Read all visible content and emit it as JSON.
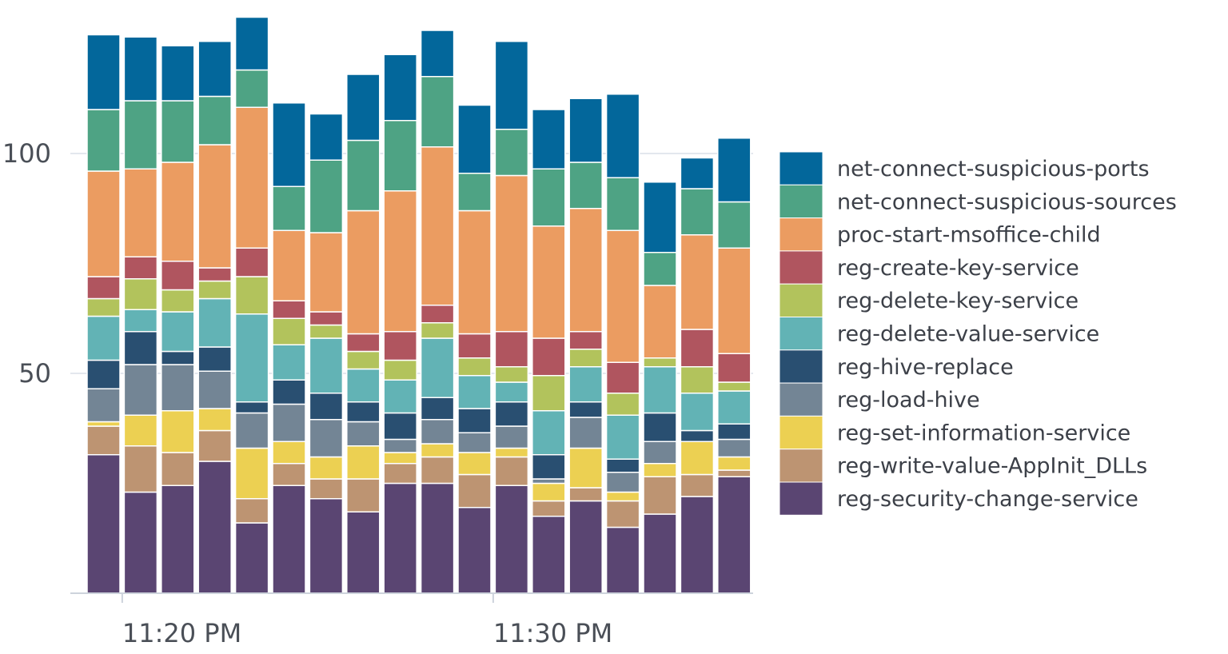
{
  "chart_data": {
    "type": "bar",
    "stacked": true,
    "title": "",
    "xlabel": "",
    "ylabel": "",
    "ylim": [
      0,
      132
    ],
    "yticks": [
      50,
      100
    ],
    "x_tick_labels": [
      {
        "label": "11:20 PM",
        "category_index": 1
      },
      {
        "label": "11:30 PM",
        "category_index": 11
      }
    ],
    "grid": "horizontal",
    "legend_position": "right",
    "categories": [
      "1",
      "2",
      "3",
      "4",
      "5",
      "6",
      "7",
      "8",
      "9",
      "10",
      "11",
      "12",
      "13",
      "14",
      "15",
      "16",
      "17",
      "18"
    ],
    "series": [
      {
        "name": "reg-security-change-service",
        "color": "#5a4572",
        "values": [
          31.5,
          23,
          24.5,
          30,
          16,
          24.5,
          21.5,
          18.5,
          25,
          25,
          19.5,
          24.5,
          17.5,
          21,
          15,
          18,
          22,
          26.5
        ]
      },
      {
        "name": "reg-write-value-AppInit_DLLs",
        "color": "#bd9472",
        "values": [
          6.5,
          10.5,
          7.5,
          7,
          5.5,
          5,
          4.5,
          7.5,
          4.5,
          6,
          7.5,
          6.5,
          3.5,
          3,
          6,
          8.5,
          5,
          1.5
        ]
      },
      {
        "name": "reg-set-information-service",
        "color": "#ecd052",
        "values": [
          1,
          7,
          9.5,
          5,
          11.5,
          5,
          5,
          7.5,
          2.5,
          3,
          5,
          2,
          4,
          9,
          2,
          3,
          7.5,
          3
        ]
      },
      {
        "name": "reg-load-hive",
        "color": "#738595",
        "values": [
          7.5,
          11.5,
          10.5,
          8.5,
          8,
          8.5,
          8.5,
          5.5,
          3,
          5.5,
          4.5,
          5,
          1,
          7,
          4.5,
          5,
          0,
          4
        ]
      },
      {
        "name": "reg-hive-replace",
        "color": "#294f71",
        "values": [
          6.5,
          7.5,
          3,
          5.5,
          2.5,
          5.5,
          6,
          4.5,
          6,
          5,
          5.5,
          5.5,
          5.5,
          3.5,
          3,
          6.5,
          2.5,
          3.5
        ]
      },
      {
        "name": "reg-delete-value-service",
        "color": "#62b3b5",
        "values": [
          10,
          5,
          9,
          11,
          20,
          8,
          12.5,
          7.5,
          7.5,
          13.5,
          7.5,
          4.5,
          10,
          8,
          10,
          10.5,
          8.5,
          7.5
        ]
      },
      {
        "name": "reg-delete-key-service",
        "color": "#b2c35c",
        "values": [
          4,
          7,
          5,
          4,
          8.5,
          6,
          3,
          4,
          4.5,
          3.5,
          4,
          3.5,
          8,
          4,
          5,
          2,
          6,
          2
        ]
      },
      {
        "name": "reg-create-key-service",
        "color": "#b0555f",
        "values": [
          5,
          5,
          6.5,
          3,
          6.5,
          4,
          3,
          4,
          6.5,
          4,
          5.5,
          8,
          8.5,
          4,
          7,
          0,
          8.5,
          6.5
        ]
      },
      {
        "name": "proc-start-msoffice-child",
        "color": "#eb9c61",
        "values": [
          24,
          20,
          22.5,
          28,
          32,
          16,
          18,
          28,
          32,
          36,
          28,
          35.5,
          25.5,
          28,
          30,
          16.5,
          21.5,
          24
        ]
      },
      {
        "name": "net-connect-suspicious-sources",
        "color": "#4ea384",
        "values": [
          14,
          15.5,
          14,
          11,
          8.5,
          10,
          16.5,
          16,
          16,
          16,
          8.5,
          10.5,
          13,
          10.5,
          12,
          7.5,
          10.5,
          10.5
        ]
      },
      {
        "name": "net-connect-suspicious-ports",
        "color": "#03679b",
        "values": [
          17,
          14.5,
          12.5,
          12.5,
          12,
          19,
          10.5,
          15,
          15,
          10.5,
          15.5,
          20,
          13.5,
          14.5,
          19,
          16,
          7,
          14.5
        ]
      }
    ]
  }
}
